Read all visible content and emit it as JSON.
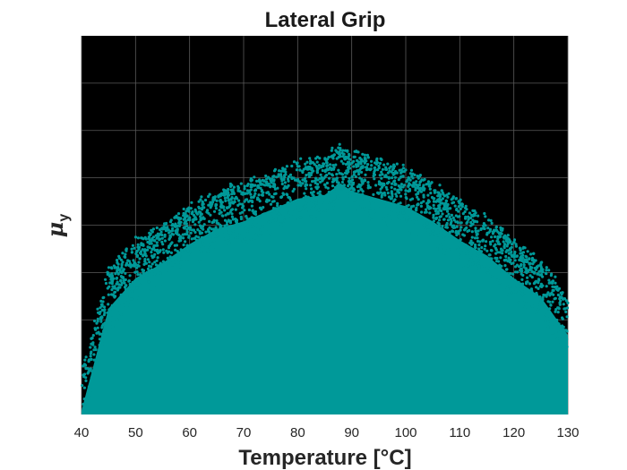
{
  "chart_data": {
    "type": "scatter",
    "title": "Lateral Grip",
    "xlabel": "Temperature [°C]",
    "ylabel": {
      "symbol": "μ",
      "subscript": "y"
    },
    "xlim": [
      40,
      130
    ],
    "ylim": [
      0,
      1
    ],
    "xticks": [
      40,
      50,
      60,
      70,
      80,
      90,
      100,
      110,
      120,
      130
    ],
    "yticks_labeled": false,
    "grid": true,
    "background": "#000000",
    "grid_color": "#5a5a5a",
    "marker_color": "#009999",
    "series": [
      {
        "distribution": "dense cloud of points under a parabolic envelope",
        "envelope_samples": {
          "x": [
            40,
            45,
            50,
            55,
            60,
            65,
            70,
            75,
            80,
            85,
            88,
            90,
            95,
            100,
            105,
            110,
            115,
            120,
            125,
            130
          ],
          "y": [
            0.1,
            0.37,
            0.45,
            0.49,
            0.54,
            0.58,
            0.6,
            0.63,
            0.66,
            0.67,
            0.7,
            0.68,
            0.66,
            0.64,
            0.6,
            0.55,
            0.51,
            0.45,
            0.4,
            0.3
          ]
        }
      }
    ]
  }
}
